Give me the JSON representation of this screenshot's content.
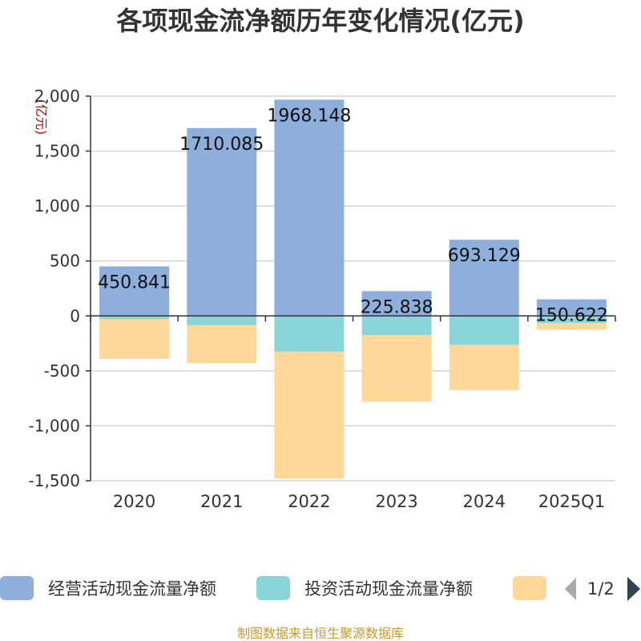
{
  "chart_data": {
    "type": "bar",
    "stacked": true,
    "title": "各项现金流净额历年变化情况(亿元)",
    "unit_label": "(亿元)",
    "categories": [
      "2020",
      "2021",
      "2022",
      "2023",
      "2024",
      "2025Q1"
    ],
    "ylim": [
      -1500,
      2000
    ],
    "yticks": [
      2000,
      1500,
      1000,
      500,
      0,
      -500,
      -1000,
      -1500
    ],
    "ytick_labels": [
      "2,000",
      "1,500",
      "1,000",
      "500",
      "0",
      "-500",
      "-1,000",
      "-1,500"
    ],
    "grid": true,
    "legend_position": "bottom",
    "series": [
      {
        "name": "经营活动现金流量净额",
        "color": "#8eaedc",
        "values": [
          450.841,
          1710.085,
          1968.148,
          225.838,
          693.129,
          150.622
        ],
        "labels": [
          "450.841",
          "1710.085",
          "1968.148",
          "225.838",
          "693.129",
          "150.622"
        ]
      },
      {
        "name": "投资活动现金流量净额",
        "color": "#88d6d9",
        "values": [
          -30,
          -85,
          -325,
          -175,
          -265,
          -65
        ]
      },
      {
        "color": "#fed898",
        "values": [
          -360,
          -345,
          -1155,
          -605,
          -410,
          -60
        ]
      }
    ]
  },
  "legend": {
    "page_indicator": "1/2",
    "prev_arrow_icon": "triangle-left-icon",
    "next_arrow_icon": "triangle-right-icon"
  },
  "source": "制图数据来自恒生聚源数据库"
}
